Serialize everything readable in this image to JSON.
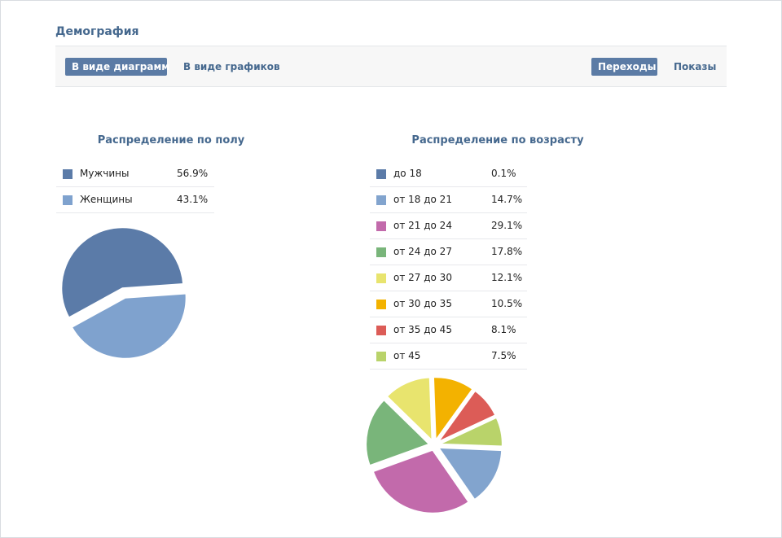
{
  "section": {
    "title": "Демография"
  },
  "toolbar": {
    "tab_diagram": "В виде диаграмм",
    "tab_graphs": "В виде графиков",
    "tab_transitions": "Переходы",
    "tab_views": "Показы"
  },
  "colors": {
    "accent": "#5b7ba5",
    "link": "#45688e"
  },
  "chart_data": [
    {
      "type": "pie",
      "title": "Распределение по полу",
      "categories": [
        "Мужчины",
        "Женщины"
      ],
      "values": [
        56.9,
        43.1
      ],
      "labels": [
        "56.9%",
        "43.1%"
      ],
      "colors": [
        "#5b7ba8",
        "#7fa2ce"
      ]
    },
    {
      "type": "pie",
      "title": "Распределение по возрасту",
      "categories": [
        "до 18",
        "от 18 до 21",
        "от 21 до 24",
        "от 24 до 27",
        "от 27 до 30",
        "от 30 до 35",
        "от 35 до 45",
        "от 45"
      ],
      "values": [
        0.1,
        14.7,
        29.1,
        17.8,
        12.1,
        10.5,
        8.1,
        7.5
      ],
      "labels": [
        "0.1%",
        "14.7%",
        "29.1%",
        "17.8%",
        "12.1%",
        "10.5%",
        "8.1%",
        "7.5%"
      ],
      "colors": [
        "#5b7ba8",
        "#82a4ce",
        "#c26aab",
        "#79b57a",
        "#e8e46e",
        "#f3b200",
        "#dc5c57",
        "#b9d36a"
      ]
    }
  ]
}
